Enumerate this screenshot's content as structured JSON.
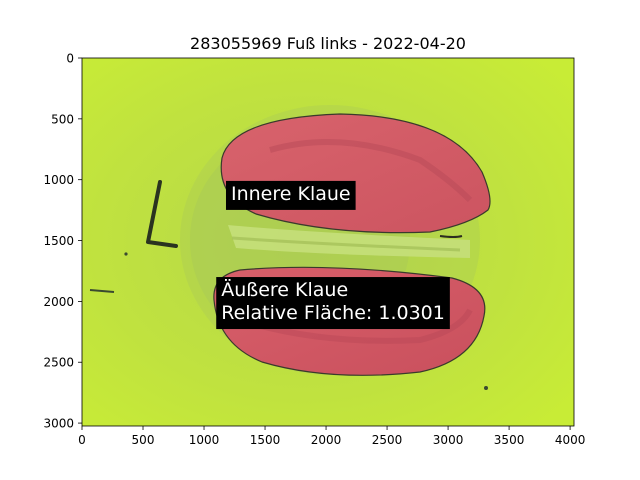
{
  "chart_data": {
    "type": "image",
    "title": "283055969 Fuß links - 2022-04-20",
    "xlabel": "",
    "ylabel": "",
    "xlim": [
      0,
      4032
    ],
    "ylim": [
      3024,
      0
    ],
    "x_ticks": [
      {
        "value": 0,
        "label": "0"
      },
      {
        "value": 500,
        "label": "500"
      },
      {
        "value": 1000,
        "label": "1000"
      },
      {
        "value": 1500,
        "label": "1500"
      },
      {
        "value": 2000,
        "label": "2000"
      },
      {
        "value": 2500,
        "label": "2500"
      },
      {
        "value": 3000,
        "label": "3000"
      },
      {
        "value": 3500,
        "label": "3500"
      },
      {
        "value": 4000,
        "label": "4000"
      }
    ],
    "y_ticks": [
      {
        "value": 0,
        "label": "0"
      },
      {
        "value": 500,
        "label": "500"
      },
      {
        "value": 1000,
        "label": "1000"
      },
      {
        "value": 1500,
        "label": "1500"
      },
      {
        "value": 2000,
        "label": "2000"
      },
      {
        "value": 2500,
        "label": "2500"
      },
      {
        "value": 3000,
        "label": "3000"
      }
    ],
    "annotations": [
      {
        "lines": [
          "Innere Klaue"
        ],
        "x": 1180,
        "y": 1010
      },
      {
        "lines": [
          "Äußere Klaue",
          "Relative Fläche: 1.0301"
        ],
        "x": 1100,
        "y": 1800
      }
    ],
    "colors": {
      "background": "#c2e53c",
      "claw": "#d45a66",
      "label_box": "#000000"
    }
  }
}
